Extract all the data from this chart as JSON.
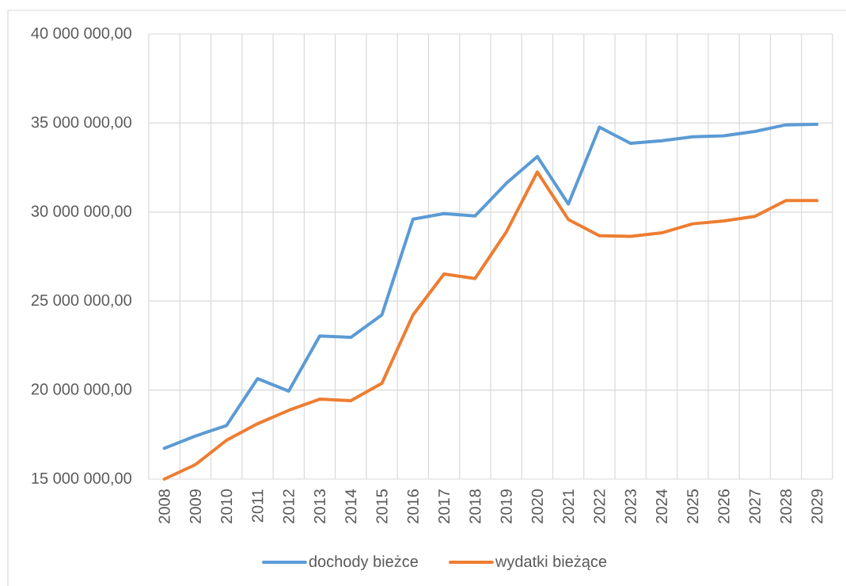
{
  "chart_data": {
    "type": "line",
    "categories": [
      "2008",
      "2009",
      "2010",
      "2011",
      "2012",
      "2013",
      "2014",
      "2015",
      "2016",
      "2017",
      "2018",
      "2019",
      "2020",
      "2021",
      "2022",
      "2023",
      "2024",
      "2025",
      "2026",
      "2027",
      "2028",
      "2029"
    ],
    "series": [
      {
        "name": "dochody bieżce",
        "color": "#5b9bd5",
        "values": [
          16730000,
          17420000,
          18010000,
          20640000,
          19940000,
          23040000,
          22960000,
          24220000,
          29600000,
          29910000,
          29780000,
          31610000,
          33120000,
          30450000,
          34770000,
          33860000,
          34010000,
          34230000,
          34280000,
          34530000,
          34900000,
          34930000
        ]
      },
      {
        "name": "wydatki bieżące",
        "color": "#ed7d31",
        "values": [
          15000000,
          15810000,
          17180000,
          18110000,
          18860000,
          19490000,
          19400000,
          20380000,
          24220000,
          26520000,
          26270000,
          28870000,
          32250000,
          29580000,
          28670000,
          28630000,
          28830000,
          29340000,
          29500000,
          29760000,
          30650000,
          30650000
        ]
      }
    ],
    "ylim": [
      15000000,
      40000000
    ],
    "yticks": [
      {
        "value": 15000000,
        "label": "15 000 000,00"
      },
      {
        "value": 20000000,
        "label": "20 000 000,00"
      },
      {
        "value": 25000000,
        "label": "25 000 000,00"
      },
      {
        "value": 30000000,
        "label": "30 000 000,00"
      },
      {
        "value": 35000000,
        "label": "35 000 000,00"
      },
      {
        "value": 40000000,
        "label": "40 000 000,00"
      }
    ],
    "grid": true,
    "legend": "bottom",
    "line_style": "solid"
  }
}
